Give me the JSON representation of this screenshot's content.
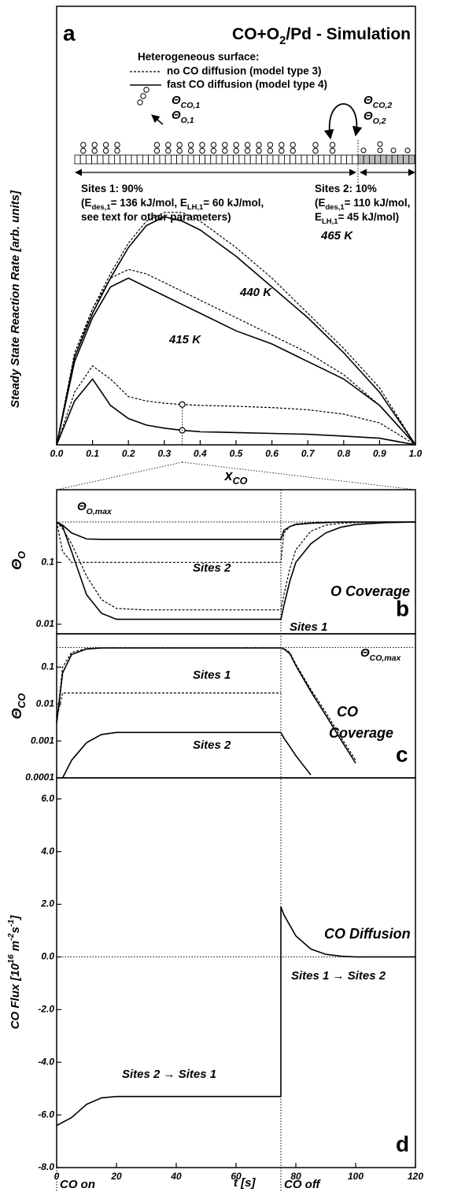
{
  "chart_data": [
    {
      "type": "line",
      "panel_label": "a",
      "title": [
        "CO+O",
        "2",
        "/Pd - Simulation"
      ],
      "diagram": {
        "heading": "Heterogeneous surface:",
        "legend": [
          {
            "label": "no CO diffusion (model type 3)",
            "dash": "dashed"
          },
          {
            "label": "fast CO diffusion (model type 4)",
            "dash": "solid"
          }
        ],
        "theta_1": [
          [
            "Θ",
            "CO,1"
          ],
          [
            "Θ",
            "O,1"
          ]
        ],
        "theta_2": [
          [
            "Θ",
            "CO,2"
          ],
          [
            "Θ",
            "O,2"
          ]
        ],
        "sites_1": [
          [
            "Sites 1: 90%"
          ],
          [
            "(E",
            "des,1",
            "= 136 kJ/mol, E",
            "LH,1",
            "= 60 kJ/mol,"
          ],
          [
            "see text for other parameters)"
          ]
        ],
        "sites_2": [
          [
            "Sites 2: 10%"
          ],
          [
            "(E",
            "des,1",
            "= 110 kJ/mol,"
          ],
          [
            "E",
            "LH,1",
            "= 45 kJ/mol)"
          ]
        ]
      },
      "y_label": "Steady State Reaction Rate [arb. units]",
      "x_label": [
        "x",
        "CO"
      ],
      "x": [
        0,
        0.05,
        0.1,
        0.15,
        0.2,
        0.25,
        0.3,
        0.35,
        0.4,
        0.5,
        0.6,
        0.7,
        0.8,
        0.9,
        1.0
      ],
      "xlim": [
        0,
        1
      ],
      "xticks": [
        {
          "value": 0,
          "label": "0.0"
        },
        0.1,
        0.2,
        0.3,
        0.4,
        0.5,
        0.6,
        0.7,
        0.8,
        0.9,
        {
          "value": 1,
          "label": "1.0"
        }
      ],
      "ylim": [
        0,
        1
      ],
      "series": [
        {
          "dash": "dashed",
          "values": [
            0,
            0.21,
            0.31,
            0.39,
            0.46,
            0.51,
            0.53,
            0.53,
            0.51,
            0.45,
            0.38,
            0.3,
            0.22,
            0.13,
            0
          ]
        },
        {
          "dash": "solid",
          "values": [
            0,
            0.2,
            0.3,
            0.38,
            0.45,
            0.5,
            0.52,
            0.51,
            0.49,
            0.43,
            0.36,
            0.29,
            0.21,
            0.12,
            0
          ]
        },
        {
          "dash": "dashed",
          "values": [
            0,
            0.2,
            0.31,
            0.38,
            0.4,
            0.39,
            0.37,
            0.35,
            0.33,
            0.29,
            0.25,
            0.21,
            0.16,
            0.09,
            0
          ]
        },
        {
          "dash": "solid",
          "values": [
            0,
            0.19,
            0.29,
            0.36,
            0.38,
            0.36,
            0.34,
            0.32,
            0.3,
            0.26,
            0.23,
            0.19,
            0.15,
            0.09,
            0
          ]
        },
        {
          "dash": "dashed",
          "values": [
            0,
            0.12,
            0.18,
            0.15,
            0.11,
            0.1,
            0.095,
            0.092,
            0.09,
            0.088,
            0.085,
            0.08,
            0.07,
            0.05,
            0
          ]
        },
        {
          "dash": "solid",
          "values": [
            0,
            0.1,
            0.15,
            0.09,
            0.06,
            0.045,
            0.038,
            0.033,
            0.03,
            0.028,
            0.026,
            0.024,
            0.02,
            0.015,
            0
          ]
        }
      ],
      "annotations": [
        "465 K",
        "440 K",
        "415 K"
      ]
    },
    {
      "type": "line",
      "log_y": true,
      "panel_label": "b",
      "y_label": [
        "Θ",
        "O"
      ],
      "x": [
        0,
        2,
        5,
        10,
        15,
        20,
        30,
        40,
        50,
        60,
        70,
        75,
        76,
        78,
        80,
        85,
        90,
        95,
        100,
        110,
        120
      ],
      "xlim": [
        0,
        120
      ],
      "ylim": [
        0.007,
        1.5
      ],
      "yticks": [
        0.01,
        0.1
      ],
      "max_line": {
        "value": 0.45,
        "label": [
          "Θ",
          "O,max"
        ]
      },
      "series": [
        {
          "dash": "dashed",
          "values": [
            0.45,
            0.15,
            0.1,
            0.1,
            0.1,
            0.1,
            0.1,
            0.1,
            0.1,
            0.1,
            0.1,
            0.1,
            0.3,
            0.38,
            0.42,
            0.44,
            0.45,
            0.45,
            0.45,
            0.45,
            0.45
          ]
        },
        {
          "dash": "solid",
          "values": [
            0.45,
            0.4,
            0.3,
            0.24,
            0.235,
            0.235,
            0.235,
            0.235,
            0.235,
            0.235,
            0.235,
            0.235,
            0.33,
            0.38,
            0.41,
            0.43,
            0.44,
            0.45,
            0.45,
            0.45,
            0.45
          ]
        },
        {
          "dash": "dashed",
          "values": [
            0.45,
            0.35,
            0.2,
            0.06,
            0.025,
            0.018,
            0.017,
            0.017,
            0.017,
            0.017,
            0.017,
            0.017,
            0.03,
            0.08,
            0.16,
            0.32,
            0.4,
            0.43,
            0.44,
            0.45,
            0.45
          ]
        },
        {
          "dash": "solid",
          "values": [
            0.45,
            0.38,
            0.15,
            0.03,
            0.015,
            0.012,
            0.012,
            0.012,
            0.012,
            0.012,
            0.012,
            0.012,
            0.02,
            0.05,
            0.1,
            0.2,
            0.3,
            0.37,
            0.41,
            0.44,
            0.45
          ]
        }
      ],
      "annotations": [
        "Sites 2",
        "O Coverage",
        "Sites 1"
      ]
    },
    {
      "type": "line",
      "log_y": true,
      "panel_label": "c",
      "y_label": [
        "Θ",
        "CO"
      ],
      "x": [
        0,
        2,
        5,
        10,
        15,
        20,
        30,
        40,
        50,
        60,
        70,
        75,
        76,
        78,
        80,
        85,
        90,
        95,
        100,
        110,
        120
      ],
      "xlim": [
        0,
        120
      ],
      "ylim": [
        0.0001,
        0.8
      ],
      "yticks": [
        0.0001,
        0.001,
        0.01,
        0.1
      ],
      "max_line": {
        "value": 0.34,
        "label": [
          "Θ",
          "CO,max"
        ]
      },
      "series": [
        {
          "dash": "dashed",
          "values": [
            0.003,
            0.1,
            0.25,
            0.32,
            0.33,
            0.33,
            0.33,
            0.33,
            0.33,
            0.33,
            0.33,
            0.33,
            0.32,
            0.25,
            0.12,
            0.025,
            0.006,
            0.0013,
            0.0003,
            null,
            null
          ]
        },
        {
          "dash": "solid",
          "values": [
            0.003,
            0.07,
            0.22,
            0.31,
            0.33,
            0.33,
            0.33,
            0.33,
            0.33,
            0.33,
            0.33,
            0.33,
            0.31,
            0.23,
            0.11,
            0.022,
            0.005,
            0.0011,
            0.00025,
            null,
            null
          ]
        },
        {
          "dash": "dashed",
          "values": [
            0.004,
            0.02,
            0.02,
            0.02,
            0.02,
            0.02,
            0.02,
            0.02,
            0.02,
            0.02,
            0.02,
            0.02,
            null,
            null,
            null,
            null,
            null,
            null,
            null,
            null,
            null
          ]
        },
        {
          "dash": "solid",
          "values": [
            null,
            0.0001,
            0.0003,
            0.0009,
            0.0015,
            0.0017,
            0.0017,
            0.0017,
            0.0017,
            0.0017,
            0.0017,
            0.0017,
            0.0012,
            0.0007,
            0.0004,
            0.00012,
            null,
            null,
            null,
            null,
            null
          ]
        }
      ],
      "annotations": [
        "Sites 1",
        "CO",
        "Coverage",
        "Sites 2"
      ]
    },
    {
      "type": "line",
      "panel_label": "d",
      "y_label": [
        "CO Flux [10",
        "16",
        " m",
        "-2",
        "s",
        "-1",
        "]"
      ],
      "x_label": "t [s]",
      "event_labels": [
        "CO on",
        "CO off"
      ],
      "switch_t": 75,
      "x": [
        0,
        5,
        10,
        15,
        20,
        30,
        40,
        50,
        60,
        70,
        75,
        75,
        76,
        78,
        80,
        85,
        90,
        95,
        100,
        110,
        120
      ],
      "xlim": [
        0,
        120
      ],
      "xticks": [
        0,
        20,
        40,
        60,
        80,
        100,
        120
      ],
      "ylim": [
        -8,
        6.8
      ],
      "yticks": [
        {
          "value": -8,
          "label": "-8.0"
        },
        {
          "value": -6,
          "label": "-6.0"
        },
        {
          "value": -4,
          "label": "-4.0"
        },
        {
          "value": -2,
          "label": "-2.0"
        },
        {
          "value": 0,
          "label": "0.0"
        },
        {
          "value": 2,
          "label": "2.0"
        },
        {
          "value": 4,
          "label": "4.0"
        },
        {
          "value": 6,
          "label": "6.0"
        }
      ],
      "zero_line": true,
      "series": [
        {
          "dash": "solid",
          "values": [
            -6.4,
            -6.1,
            -5.6,
            -5.35,
            -5.3,
            -5.3,
            -5.3,
            -5.3,
            -5.3,
            -5.3,
            -5.3,
            1.9,
            1.6,
            1.2,
            0.8,
            0.3,
            0.1,
            0.03,
            0,
            0,
            0
          ]
        }
      ],
      "annotations": [
        "CO Diffusion",
        "Sites 1 → Sites 2",
        "Sites 2 → Sites 1"
      ]
    }
  ]
}
